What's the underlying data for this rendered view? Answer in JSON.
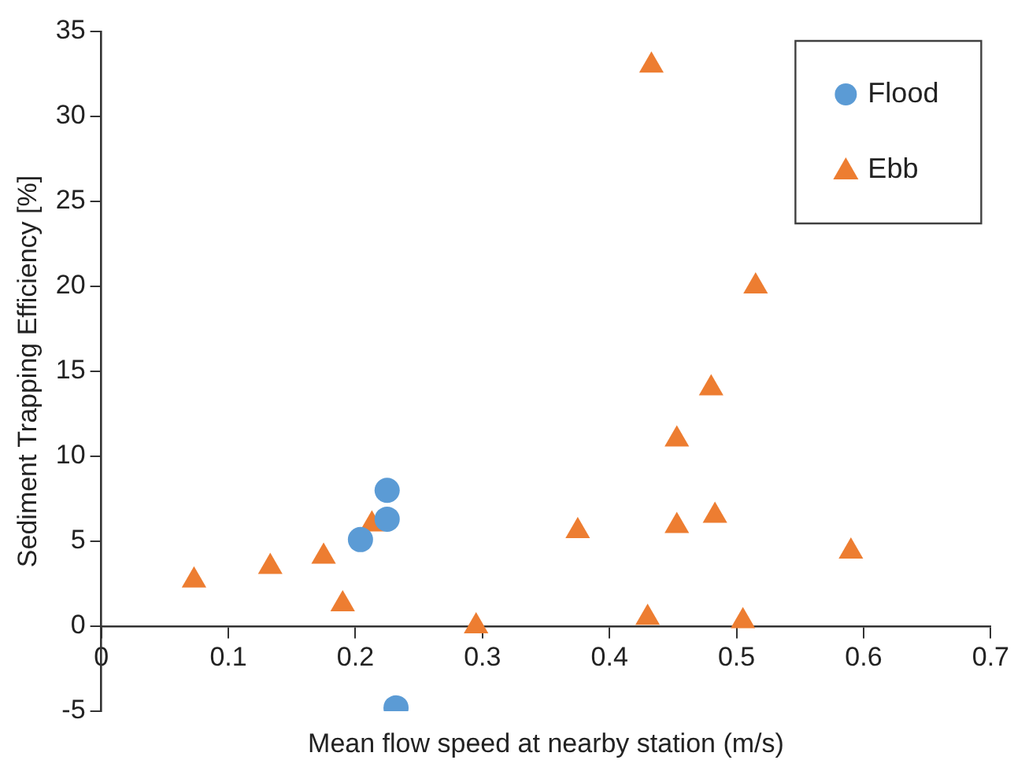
{
  "chart_data": {
    "type": "scatter",
    "xlabel": "Mean flow speed at nearby station (m/s)",
    "ylabel": "Sediment Trapping Efficiency [%]",
    "xlim": [
      0,
      0.7
    ],
    "xticks": [
      0,
      0.1,
      0.2,
      0.3,
      0.4,
      0.5,
      0.6,
      0.7
    ],
    "ylim": [
      -5,
      35
    ],
    "yticks": [
      -5,
      0,
      5,
      10,
      15,
      20,
      25,
      30,
      35
    ],
    "grid": false,
    "legend": "top right",
    "series": [
      {
        "name": "Flood",
        "color": "#5b9bd5",
        "marker": "circle",
        "x": [
          0.204,
          0.225,
          0.225,
          0.232
        ],
        "values": [
          5.1,
          8.0,
          6.3,
          -4.8
        ]
      },
      {
        "name": "Ebb",
        "color": "#ed7d31",
        "marker": "triangle",
        "x": [
          0.073,
          0.133,
          0.175,
          0.19,
          0.213,
          0.295,
          0.375,
          0.43,
          0.433,
          0.453,
          0.453,
          0.48,
          0.483,
          0.505,
          0.515,
          0.59
        ],
        "values": [
          2.7,
          3.5,
          4.1,
          1.3,
          6.0,
          0.0,
          5.6,
          0.5,
          33.0,
          11.0,
          5.9,
          14.0,
          6.5,
          0.3,
          20.0,
          4.4
        ]
      }
    ]
  }
}
